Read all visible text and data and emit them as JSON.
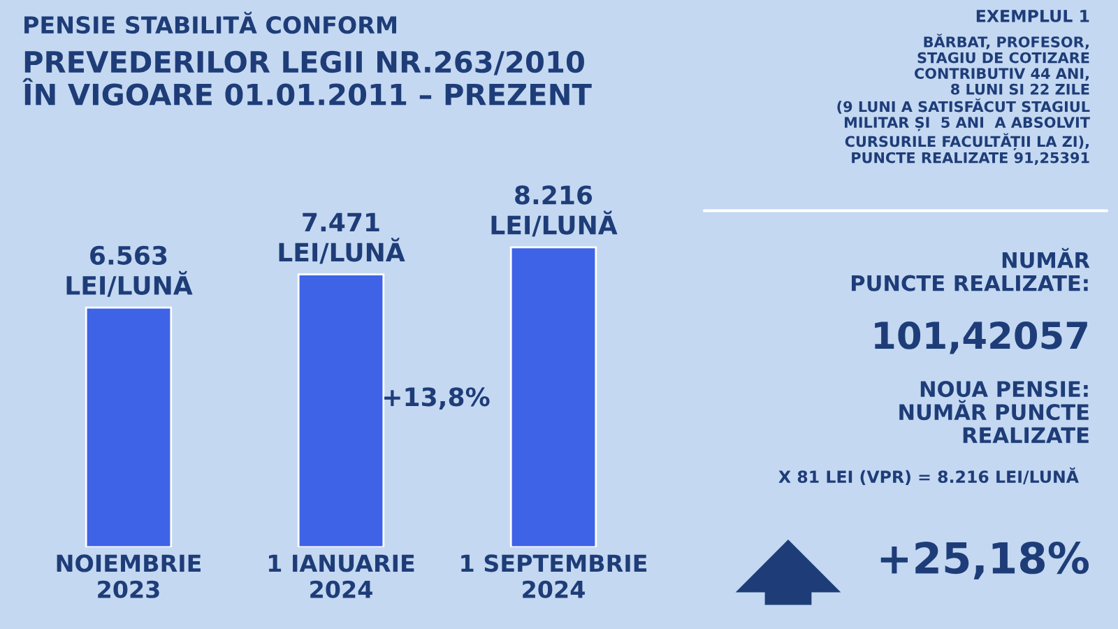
{
  "chart_data": {
    "type": "bar",
    "title": "PENSIE STABILITĂ CONFORM",
    "subtitle": "PREVEDERILOR LEGII NR.263/2010\nÎN VIGOARE 01.01.2011 – PREZENT",
    "categories": [
      "NOIEMBRIE\n2023",
      "1 IANUARIE\n2024",
      "1 SEPTEMBRIE\n2024"
    ],
    "values": [
      6563,
      7471,
      8216
    ],
    "value_labels": [
      "6.563\nLEI/LUNĂ",
      "7.471\nLEI/LUNĂ",
      "8.216\nLEI/LUNĂ"
    ],
    "color": "#3f63e6",
    "annotations": [
      "+13,8%",
      "EXEMPLUL 1",
      "BĂRBAT, PROFESOR,\nSTAGIU DE COTIZARE\nCONTRIBUTIV 44 ANI,\n8 LUNI SI 22 ZILE\n(9 LUNI A SATISFĂCUT STAGIUL\nMILITAR ȘI  5 ANI  A ABSOLVIT\nCURSURILE FACULTĂȚII LA ZI),\nPUNCTE REALIZATE 91,25391",
      "NUMĂR\nPUNCTE REALIZATE:",
      "101,42057",
      "NOUA PENSIE:\nNUMĂR PUNCTE\nREALIZATE",
      "X 81 LEI (VPR) = 8.216 LEI/LUNĂ",
      "+25,18%"
    ]
  }
}
